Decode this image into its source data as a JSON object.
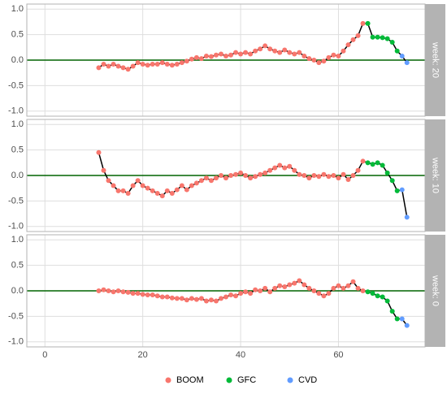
{
  "legend": [
    {
      "name": "BOOM",
      "color": "#F8766D"
    },
    {
      "name": "GFC",
      "color": "#00BA38"
    },
    {
      "name": "CVD",
      "color": "#619CFF"
    }
  ],
  "chart_data": [
    {
      "type": "line",
      "strip": "week: 20",
      "hline": 0,
      "xlim": [
        -3.7,
        77.7
      ],
      "xticks": [
        0,
        20,
        40,
        60
      ],
      "ylim": [
        -1.1,
        1.1
      ],
      "yticks": [
        {
          "value": -1,
          "label": "-1.0"
        },
        {
          "value": -0.5,
          "label": "-0.5"
        },
        {
          "value": 0,
          "label": "0.0"
        },
        {
          "value": 0.5,
          "label": "0.5"
        },
        {
          "value": 1,
          "label": "1.0"
        }
      ],
      "grid": true,
      "series": [
        {
          "x": [
            11,
            12,
            13,
            14,
            15,
            16,
            17,
            18,
            19,
            20,
            21,
            22,
            23,
            24,
            25,
            26,
            27,
            28,
            29,
            30,
            31,
            32,
            33,
            34,
            35,
            36,
            37,
            38,
            39,
            40,
            41,
            42,
            43,
            44,
            45,
            46,
            47,
            48,
            49,
            50,
            51,
            52,
            53,
            54,
            55,
            56,
            57,
            58,
            59,
            60,
            61,
            62,
            63,
            64,
            65
          ],
          "values": [
            -0.15,
            -0.08,
            -0.12,
            -0.08,
            -0.12,
            -0.15,
            -0.18,
            -0.12,
            -0.05,
            -0.08,
            -0.1,
            -0.08,
            -0.08,
            -0.05,
            -0.08,
            -0.1,
            -0.08,
            -0.05,
            -0.02,
            0.02,
            0.05,
            0.03,
            0.08,
            0.07,
            0.1,
            0.12,
            0.08,
            0.1,
            0.15,
            0.12,
            0.15,
            0.12,
            0.18,
            0.22,
            0.28,
            0.22,
            0.18,
            0.15,
            0.2,
            0.15,
            0.12,
            0.15,
            0.08,
            0.03,
            0.0,
            -0.05,
            -0.02,
            0.05,
            0.1,
            0.08,
            0.18,
            0.3,
            0.4,
            0.48,
            0.72
          ]
        },
        {
          "x": [
            66,
            67,
            68,
            69,
            70,
            71,
            72
          ],
          "values": [
            0.72,
            0.45,
            0.45,
            0.44,
            0.42,
            0.35,
            0.18
          ]
        },
        {
          "x": [
            73,
            74
          ],
          "values": [
            0.08,
            -0.05
          ]
        }
      ]
    },
    {
      "type": "line",
      "strip": "week: 10",
      "hline": 0,
      "xlim": [
        -3.7,
        77.7
      ],
      "xticks": [
        0,
        20,
        40,
        60
      ],
      "ylim": [
        -1.1,
        1.1
      ],
      "yticks": [
        {
          "value": -1,
          "label": "-1.0"
        },
        {
          "value": -0.5,
          "label": "-0.5"
        },
        {
          "value": 0,
          "label": "0.0"
        },
        {
          "value": 0.5,
          "label": "0.5"
        },
        {
          "value": 1,
          "label": "1.0"
        }
      ],
      "grid": true,
      "series": [
        {
          "x": [
            11,
            12,
            13,
            14,
            15,
            16,
            17,
            18,
            19,
            20,
            21,
            22,
            23,
            24,
            25,
            26,
            27,
            28,
            29,
            30,
            31,
            32,
            33,
            34,
            35,
            36,
            37,
            38,
            39,
            40,
            41,
            42,
            43,
            44,
            45,
            46,
            47,
            48,
            49,
            50,
            51,
            52,
            53,
            54,
            55,
            56,
            57,
            58,
            59,
            60,
            61,
            62,
            63,
            64,
            65
          ],
          "values": [
            0.45,
            0.1,
            -0.1,
            -0.2,
            -0.3,
            -0.3,
            -0.35,
            -0.2,
            -0.1,
            -0.2,
            -0.25,
            -0.3,
            -0.35,
            -0.4,
            -0.3,
            -0.35,
            -0.28,
            -0.2,
            -0.28,
            -0.2,
            -0.15,
            -0.1,
            -0.05,
            -0.1,
            -0.05,
            0.0,
            -0.05,
            0.0,
            0.02,
            0.05,
            0.0,
            -0.05,
            -0.02,
            0.02,
            0.05,
            0.1,
            0.15,
            0.2,
            0.15,
            0.18,
            0.1,
            0.02,
            0.0,
            -0.05,
            0.0,
            -0.02,
            0.02,
            -0.02,
            0.0,
            -0.05,
            0.02,
            -0.08,
            0.0,
            0.1,
            0.28
          ]
        },
        {
          "x": [
            66,
            67,
            68,
            69,
            70,
            71,
            72
          ],
          "values": [
            0.25,
            0.22,
            0.25,
            0.2,
            0.05,
            -0.1,
            -0.3
          ]
        },
        {
          "x": [
            73,
            74
          ],
          "values": [
            -0.28,
            -0.82
          ]
        }
      ]
    },
    {
      "type": "line",
      "strip": "week: 0",
      "hline": 0,
      "xlim": [
        -3.7,
        77.7
      ],
      "xticks": [
        0,
        20,
        40,
        60
      ],
      "ylim": [
        -1.1,
        1.1
      ],
      "yticks": [
        {
          "value": -1,
          "label": "-1.0"
        },
        {
          "value": -0.5,
          "label": "-0.5"
        },
        {
          "value": 0,
          "label": "0.0"
        },
        {
          "value": 0.5,
          "label": "0.5"
        },
        {
          "value": 1,
          "label": "1.0"
        }
      ],
      "grid": true,
      "series": [
        {
          "x": [
            11,
            12,
            13,
            14,
            15,
            16,
            17,
            18,
            19,
            20,
            21,
            22,
            23,
            24,
            25,
            26,
            27,
            28,
            29,
            30,
            31,
            32,
            33,
            34,
            35,
            36,
            37,
            38,
            39,
            40,
            41,
            42,
            43,
            44,
            45,
            46,
            47,
            48,
            49,
            50,
            51,
            52,
            53,
            54,
            55,
            56,
            57,
            58,
            59,
            60,
            61,
            62,
            63,
            64,
            65
          ],
          "values": [
            0.0,
            0.02,
            0.0,
            -0.02,
            0.0,
            -0.02,
            -0.03,
            -0.05,
            -0.05,
            -0.07,
            -0.08,
            -0.08,
            -0.1,
            -0.12,
            -0.12,
            -0.14,
            -0.15,
            -0.15,
            -0.18,
            -0.15,
            -0.17,
            -0.15,
            -0.2,
            -0.18,
            -0.2,
            -0.15,
            -0.12,
            -0.08,
            -0.1,
            -0.05,
            -0.02,
            -0.05,
            0.02,
            0.0,
            0.05,
            -0.02,
            0.05,
            0.1,
            0.08,
            0.12,
            0.15,
            0.2,
            0.12,
            0.05,
            0.0,
            -0.05,
            -0.1,
            -0.05,
            0.05,
            0.1,
            0.05,
            0.1,
            0.18,
            0.05,
            0.0
          ]
        },
        {
          "x": [
            66,
            67,
            68,
            69,
            70,
            71,
            72
          ],
          "values": [
            -0.02,
            -0.05,
            -0.1,
            -0.12,
            -0.2,
            -0.4,
            -0.55
          ]
        },
        {
          "x": [
            73,
            74
          ],
          "values": [
            -0.55,
            -0.68
          ]
        }
      ]
    }
  ]
}
